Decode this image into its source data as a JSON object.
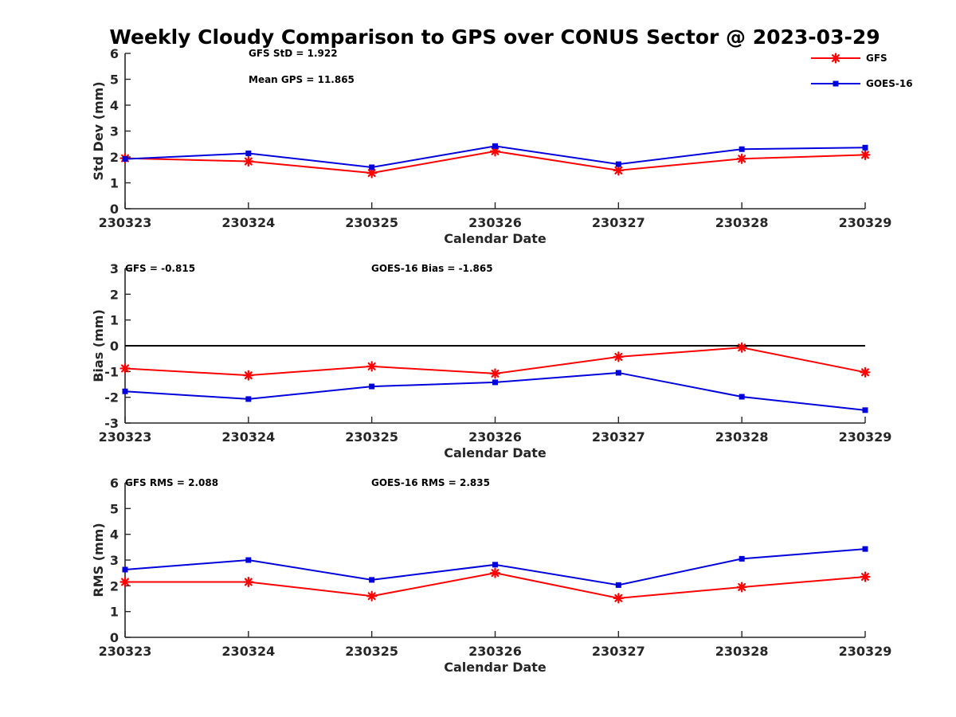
{
  "figure_title": "Weekly Cloudy Comparison to GPS over CONUS Sector @ 2023-03-29",
  "legend": {
    "location": "top-right",
    "entries": [
      {
        "label": "GFS",
        "color": "#ff0000",
        "marker": "asterisk"
      },
      {
        "label": "GOES-16",
        "color": "#0000dd",
        "marker": "square"
      }
    ]
  },
  "chart_data": [
    {
      "type": "line",
      "title": "",
      "xlabel": "Calendar Date",
      "ylabel": "Std Dev (mm)",
      "categories": [
        "230323",
        "230324",
        "230325",
        "230326",
        "230327",
        "230328",
        "230329"
      ],
      "ylim": [
        0,
        6
      ],
      "yticks": [
        "0",
        "1",
        "2",
        "3",
        "4",
        "5",
        "6"
      ],
      "grid": false,
      "zero_line": false,
      "annotations": [
        "GFS StD = 1.922",
        "Mean GPS = 11.865"
      ],
      "series": [
        {
          "name": "GFS",
          "color": "#ff0000",
          "marker": "asterisk",
          "values": [
            1.95,
            1.83,
            1.38,
            2.22,
            1.48,
            1.93,
            2.08
          ]
        },
        {
          "name": "GOES-16",
          "color": "#0000dd",
          "marker": "square",
          "values": [
            1.92,
            2.14,
            1.6,
            2.42,
            1.72,
            2.3,
            2.36
          ]
        }
      ]
    },
    {
      "type": "line",
      "title": "",
      "xlabel": "Calendar Date",
      "ylabel": "Bias (mm)",
      "categories": [
        "230323",
        "230324",
        "230325",
        "230326",
        "230327",
        "230328",
        "230329"
      ],
      "ylim": [
        -3,
        3
      ],
      "yticks": [
        "-3",
        "-2",
        "-1",
        "0",
        "1",
        "2",
        "3"
      ],
      "grid": false,
      "zero_line": true,
      "annotations": [
        "GFS = -0.815",
        "GOES-16 Bias  = -1.865"
      ],
      "series": [
        {
          "name": "GFS",
          "color": "#ff0000",
          "marker": "asterisk",
          "values": [
            -0.88,
            -1.15,
            -0.8,
            -1.08,
            -0.43,
            -0.07,
            -1.03
          ]
        },
        {
          "name": "GOES-16",
          "color": "#0000dd",
          "marker": "square",
          "values": [
            -1.77,
            -2.07,
            -1.58,
            -1.42,
            -1.05,
            -1.98,
            -2.5
          ]
        }
      ]
    },
    {
      "type": "line",
      "title": "",
      "xlabel": "Calendar Date",
      "ylabel": "RMS (mm)",
      "categories": [
        "230323",
        "230324",
        "230325",
        "230326",
        "230327",
        "230328",
        "230329"
      ],
      "ylim": [
        0,
        6
      ],
      "yticks": [
        "0",
        "1",
        "2",
        "3",
        "4",
        "5",
        "6"
      ],
      "grid": false,
      "zero_line": false,
      "annotations": [
        "GFS RMS = 2.088",
        "GOES-16 RMS = 2.835"
      ],
      "series": [
        {
          "name": "GFS",
          "color": "#ff0000",
          "marker": "asterisk",
          "values": [
            2.15,
            2.15,
            1.6,
            2.5,
            1.52,
            1.95,
            2.35
          ]
        },
        {
          "name": "GOES-16",
          "color": "#0000dd",
          "marker": "square",
          "values": [
            2.63,
            3.0,
            2.23,
            2.82,
            2.03,
            3.05,
            3.43
          ]
        }
      ]
    }
  ]
}
